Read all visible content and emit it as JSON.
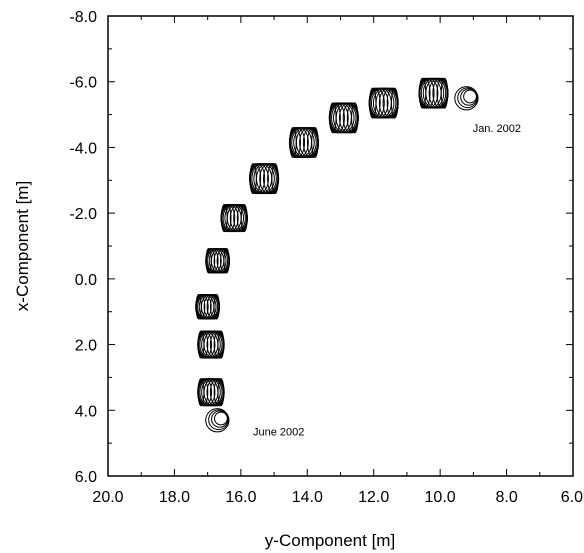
{
  "chart_data": {
    "type": "scatter",
    "title": "",
    "xlabel": "y-Component [m]",
    "ylabel": "x-Component [m]",
    "xlim": [
      20.0,
      6.0
    ],
    "ylim": [
      6.0,
      -8.0
    ],
    "x_reversed": true,
    "y_reversed": true,
    "x_ticks": [
      "20.0",
      "18.0",
      "16.0",
      "14.0",
      "12.0",
      "10.0",
      "8.0",
      "6.0"
    ],
    "y_ticks": [
      "-8.0",
      "-6.0",
      "-4.0",
      "-2.0",
      "0.0",
      "2.0",
      "4.0",
      "6.0"
    ],
    "grid": false,
    "marker": "open-circles",
    "series": [
      {
        "points": [
          {
            "x": 9.1,
            "y": -5.55,
            "r": 0.35
          },
          {
            "x": 10.2,
            "y": -5.65,
            "r": 0.55
          },
          {
            "x": 11.7,
            "y": -5.35,
            "r": 0.55
          },
          {
            "x": 12.9,
            "y": -4.9,
            "r": 0.55
          },
          {
            "x": 14.1,
            "y": -4.15,
            "r": 0.55
          },
          {
            "x": 15.3,
            "y": -3.05,
            "r": 0.55
          },
          {
            "x": 16.2,
            "y": -1.85,
            "r": 0.5
          },
          {
            "x": 16.7,
            "y": -0.55,
            "r": 0.45
          },
          {
            "x": 17.0,
            "y": 0.85,
            "r": 0.45
          },
          {
            "x": 16.9,
            "y": 2.0,
            "r": 0.5
          },
          {
            "x": 16.9,
            "y": 3.45,
            "r": 0.5
          },
          {
            "x": 16.6,
            "y": 4.25,
            "r": 0.35
          }
        ]
      }
    ],
    "annotations": [
      {
        "text": "Jan. 2002",
        "x": 9.25,
        "y": -4.6
      },
      {
        "text": "June 2002",
        "x": 15.0,
        "y": 4.6
      }
    ]
  }
}
